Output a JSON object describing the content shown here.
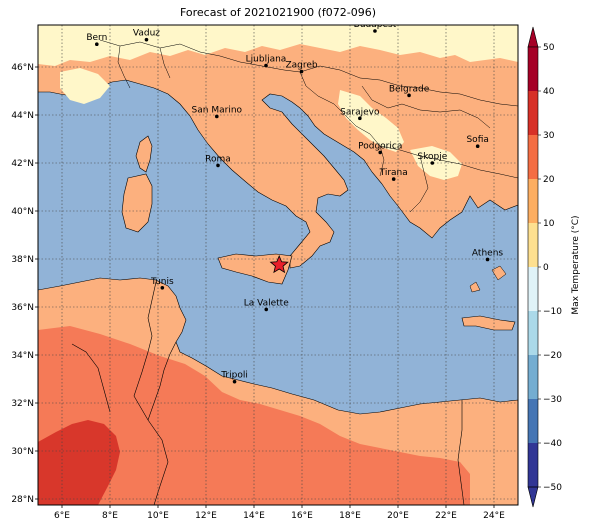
{
  "title": "Forecast of 2021021900 (f072-096)",
  "map": {
    "lon_min": 5.0,
    "lon_max": 25.0,
    "lat_min": 27.75,
    "lat_max": 47.75,
    "lon_ticks": [
      {
        "value": 6,
        "label": "6°E"
      },
      {
        "value": 8,
        "label": "8°E"
      },
      {
        "value": 10,
        "label": "10°E"
      },
      {
        "value": 12,
        "label": "12°E"
      },
      {
        "value": 14,
        "label": "14°E"
      },
      {
        "value": 16,
        "label": "16°E"
      },
      {
        "value": 18,
        "label": "18°E"
      },
      {
        "value": 20,
        "label": "20°E"
      },
      {
        "value": 22,
        "label": "22°E"
      },
      {
        "value": 24,
        "label": "24°E"
      }
    ],
    "lat_ticks": [
      {
        "value": 28,
        "label": "28°N"
      },
      {
        "value": 30,
        "label": "30°N"
      },
      {
        "value": 32,
        "label": "32°N"
      },
      {
        "value": 34,
        "label": "34°N"
      },
      {
        "value": 36,
        "label": "36°N"
      },
      {
        "value": 38,
        "label": "38°N"
      },
      {
        "value": 40,
        "label": "40°N"
      },
      {
        "value": 42,
        "label": "42°N"
      },
      {
        "value": 44,
        "label": "44°N"
      },
      {
        "value": 46,
        "label": "46°N"
      }
    ],
    "grid": true,
    "cities": [
      {
        "name": "Bern",
        "lon": 7.45,
        "lat": 46.95
      },
      {
        "name": "Vaduz",
        "lon": 9.52,
        "lat": 47.14
      },
      {
        "name": "Budapest",
        "lon": 19.04,
        "lat": 47.5
      },
      {
        "name": "Ljubljana",
        "lon": 14.5,
        "lat": 46.06
      },
      {
        "name": "Zagreb",
        "lon": 15.98,
        "lat": 45.81
      },
      {
        "name": "Belgrade",
        "lon": 20.46,
        "lat": 44.82
      },
      {
        "name": "San Marino",
        "lon": 12.45,
        "lat": 43.94
      },
      {
        "name": "Sarajevo",
        "lon": 18.41,
        "lat": 43.86
      },
      {
        "name": "Sofia",
        "lon": 23.32,
        "lat": 42.7
      },
      {
        "name": "Roma",
        "lon": 12.5,
        "lat": 41.9
      },
      {
        "name": "Podgorica",
        "lon": 19.26,
        "lat": 42.44
      },
      {
        "name": "Skopje",
        "lon": 21.43,
        "lat": 42.0
      },
      {
        "name": "Tirana",
        "lon": 19.82,
        "lat": 41.33
      },
      {
        "name": "Athens",
        "lon": 23.73,
        "lat": 37.98
      },
      {
        "name": "Tunis",
        "lon": 10.18,
        "lat": 36.8
      },
      {
        "name": "La Valette",
        "lon": 14.51,
        "lat": 35.9
      },
      {
        "name": "Tripoli",
        "lon": 13.19,
        "lat": 32.89
      }
    ],
    "marker": {
      "lon": 15.05,
      "lat": 37.75,
      "symbol": "star",
      "color": "#e8202a"
    },
    "colors": {
      "sea": "#91b3d7",
      "land_0_10": "#fff7c9",
      "land_10_20": "#fcb07e",
      "land_20_30": "#f57a57",
      "land_30_40": "#d8372b",
      "border": "#000000"
    }
  },
  "colorbar": {
    "label": "Max Temperature (°C)",
    "ticks": [
      "50",
      "40",
      "30",
      "20",
      "10",
      "0",
      "−10",
      "−20",
      "−30",
      "−40",
      "−50"
    ],
    "colors": [
      "#a50026",
      "#d73027",
      "#f46d43",
      "#fdae61",
      "#fee090",
      "#e0f3f8",
      "#abd9e9",
      "#74add1",
      "#4575b4",
      "#313695"
    ]
  }
}
